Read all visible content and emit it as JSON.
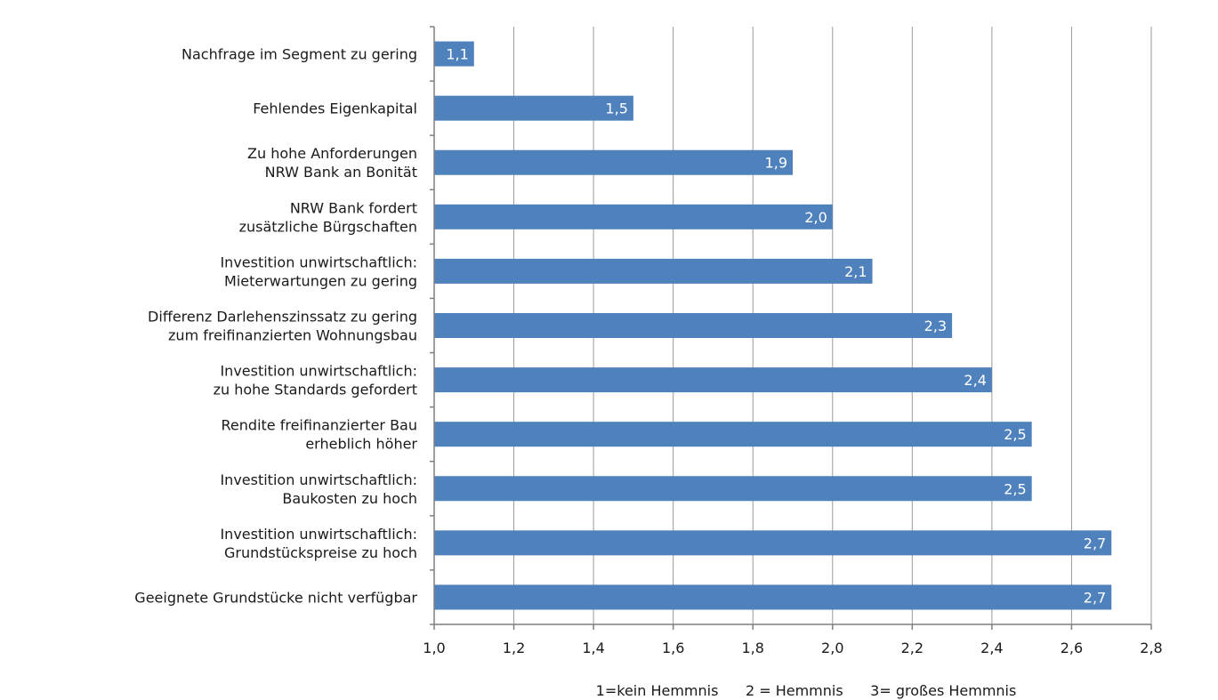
{
  "chart_data": {
    "type": "bar",
    "orientation": "horizontal",
    "categories": [
      [
        "Nachfrage im Segment zu gering"
      ],
      [
        "Fehlendes Eigenkapital"
      ],
      [
        "Zu hohe Anforderungen",
        "NRW Bank an Bonität"
      ],
      [
        "NRW Bank fordert",
        "zusätzliche Bürgschaften"
      ],
      [
        "Investition unwirtschaftlich:",
        "Mieterwartungen zu gering"
      ],
      [
        "Differenz Darlehenszinssatz zu gering",
        "zum freifinanzierten Wohnungsbau"
      ],
      [
        "Investition unwirtschaftlich:",
        "zu hohe  Standards gefordert"
      ],
      [
        "Rendite freifinanzierter Bau",
        "erheblich höher"
      ],
      [
        "Investition unwirtschaftlich:",
        "Baukosten zu hoch"
      ],
      [
        "Investition unwirtschaftlich:",
        "Grundstückspreise zu hoch"
      ],
      [
        "Geeignete Grundstücke nicht verfügbar"
      ]
    ],
    "values": [
      1.1,
      1.5,
      1.9,
      2.0,
      2.1,
      2.3,
      2.4,
      2.5,
      2.5,
      2.7,
      2.7
    ],
    "value_labels": [
      "1,1",
      "1,5",
      "1,9",
      "2,0",
      "2,1",
      "2,3",
      "2,4",
      "2,5",
      "2,5",
      "2,7",
      "2,7"
    ],
    "xlim": [
      1.0,
      2.8
    ],
    "xticks": [
      1.0,
      1.2,
      1.4,
      1.6,
      1.8,
      2.0,
      2.2,
      2.4,
      2.6,
      2.8
    ],
    "xtick_labels": [
      "1,0",
      "1,2",
      "1,4",
      "1,6",
      "1,8",
      "2,0",
      "2,2",
      "2,4",
      "2,6",
      "2,8"
    ],
    "legend_note": "1=kein Hemmnis      2 = Hemmnis      3= großes Hemmnis",
    "grid": true,
    "bar_color": "#4f81bd",
    "grid_color": "#9a9a9a",
    "axis_color": "#7f7f7f"
  }
}
